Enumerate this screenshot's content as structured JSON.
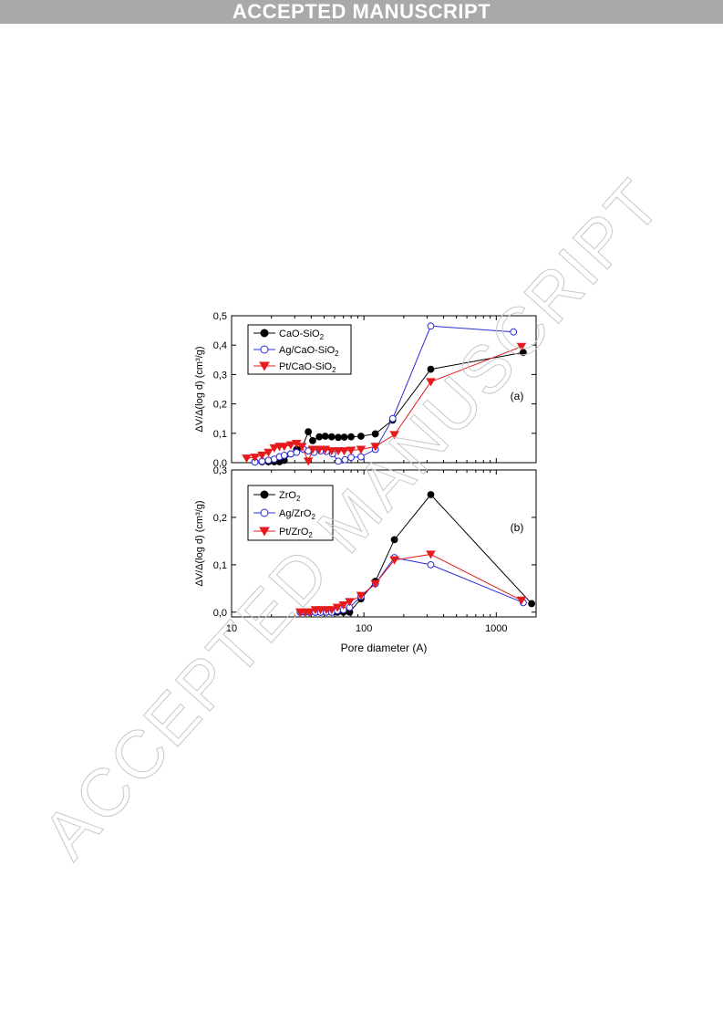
{
  "banner": "ACCEPTED MANUSCRIPT",
  "watermark": "ACCEPTED MANUSCRIPT",
  "colors": {
    "black": "#000000",
    "blue": "#2b2bd6",
    "red": "#e41a1c",
    "banner_bg": "#a9a9a9"
  },
  "chart_data": [
    {
      "type": "scatter",
      "panel_label": "(a)",
      "xscale": "log",
      "xlim": [
        10,
        2000
      ],
      "ylim": [
        0,
        0.5
      ],
      "yticks": [
        "0,0",
        "0,1",
        "0,2",
        "0,3",
        "0,4",
        "0,5"
      ],
      "ylabel": "ΔV/Δ(log d) (cm³/g)",
      "legend_position": "top-left",
      "series": [
        {
          "name": "CaO-SiO2",
          "color": "#000000",
          "marker": "filled-circle",
          "x": [
            15,
            17,
            19,
            21,
            23,
            25,
            28,
            31,
            34,
            38,
            41,
            46,
            51,
            57,
            64,
            71,
            80,
            95,
            122,
            165,
            320,
            1600
          ],
          "y": [
            0.003,
            0.003,
            0.003,
            0.003,
            0.003,
            0.008,
            0.03,
            0.045,
            0.05,
            0.105,
            0.075,
            0.088,
            0.09,
            0.088,
            0.086,
            0.087,
            0.088,
            0.09,
            0.098,
            0.145,
            0.318,
            0.375
          ]
        },
        {
          "name": "Ag/CaO-SiO2",
          "color": "#2b2bd6",
          "marker": "open-circle",
          "x": [
            15,
            17,
            19,
            21,
            23,
            25,
            28,
            31,
            35,
            38,
            42,
            47,
            52,
            58,
            64,
            72,
            80,
            95,
            122,
            165,
            320,
            1350
          ],
          "y": [
            0.002,
            0.005,
            0.008,
            0.012,
            0.02,
            0.025,
            0.03,
            0.035,
            0.045,
            0.04,
            0.035,
            0.04,
            0.038,
            0.03,
            0.005,
            0.01,
            0.018,
            0.02,
            0.045,
            0.15,
            0.465,
            0.445
          ]
        },
        {
          "name": "Pt/CaO-SiO2",
          "color": "#e41a1c",
          "marker": "filled-triangle-down",
          "x": [
            13,
            15,
            17,
            19,
            21,
            23,
            25,
            28,
            31,
            34,
            38,
            41,
            46,
            51,
            57,
            64,
            71,
            80,
            95,
            122,
            170,
            320,
            1550
          ],
          "y": [
            0.015,
            0.018,
            0.025,
            0.035,
            0.05,
            0.055,
            0.055,
            0.06,
            0.065,
            0.055,
            0.005,
            0.045,
            0.045,
            0.045,
            0.04,
            0.04,
            0.04,
            0.042,
            0.045,
            0.055,
            0.095,
            0.275,
            0.395
          ]
        }
      ]
    },
    {
      "type": "scatter",
      "panel_label": "(b)",
      "xscale": "log",
      "xlim": [
        10,
        2000
      ],
      "xticks": [
        "10",
        "100",
        "1000"
      ],
      "ylim": [
        -0.01,
        0.3
      ],
      "yticks": [
        "0,0",
        "0,1",
        "0,2",
        "0,3"
      ],
      "xlabel": "Pore diameter (A)",
      "ylabel": "ΔV/Δ(log d) (cm³/g)",
      "legend_position": "top-left",
      "series": [
        {
          "name": "ZrO2",
          "color": "#000000",
          "marker": "filled-circle",
          "x": [
            33,
            36,
            39,
            43,
            47,
            52,
            57,
            63,
            70,
            78,
            95,
            122,
            170,
            320,
            1850
          ],
          "y": [
            0.0,
            0.0,
            0.0,
            0.0,
            0.0,
            0.0,
            0.0,
            0.0,
            0.0,
            0.0,
            0.028,
            0.065,
            0.153,
            0.248,
            0.018
          ]
        },
        {
          "name": "Ag/ZrO2",
          "color": "#2b2bd6",
          "marker": "open-circle",
          "x": [
            33,
            36,
            39,
            43,
            47,
            52,
            57,
            63,
            70,
            78,
            95,
            122,
            170,
            320,
            1600
          ],
          "y": [
            0.0,
            0.0,
            0.0,
            0.0,
            0.0,
            0.0,
            0.0,
            0.003,
            0.005,
            0.01,
            0.033,
            0.06,
            0.115,
            0.1,
            0.02
          ]
        },
        {
          "name": "Pt/ZrO2",
          "color": "#e41a1c",
          "marker": "filled-triangle-down",
          "x": [
            33,
            36,
            39,
            43,
            47,
            52,
            57,
            63,
            70,
            78,
            95,
            122,
            170,
            320,
            1550
          ],
          "y": [
            0.0,
            0.0,
            0.0,
            0.005,
            0.005,
            0.005,
            0.005,
            0.01,
            0.015,
            0.022,
            0.035,
            0.06,
            0.11,
            0.122,
            0.025
          ]
        }
      ]
    }
  ]
}
